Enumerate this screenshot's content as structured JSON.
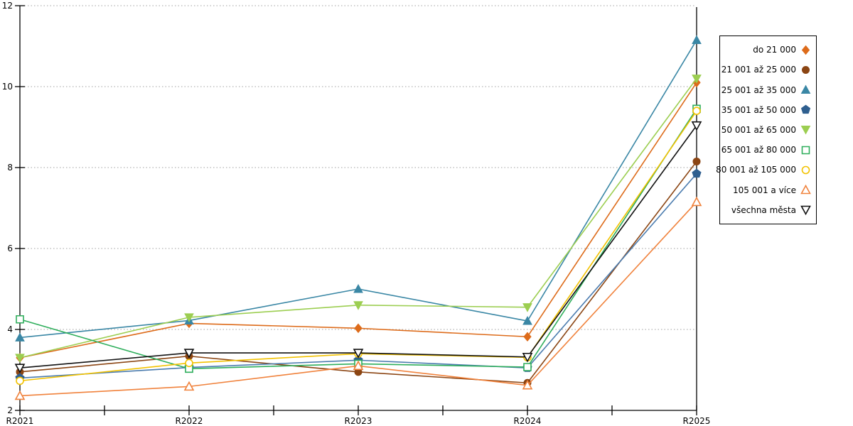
{
  "chart_data": {
    "type": "line",
    "title": "",
    "xlabel": "",
    "ylabel": "",
    "categories": [
      "R2021",
      "R2022",
      "R2023",
      "R2024",
      "R2025"
    ],
    "ylim": [
      2,
      12
    ],
    "yticks": [
      2,
      4,
      6,
      8,
      10,
      12
    ],
    "grid": "horizontal-dotted",
    "grid_color": "#a0a0a0",
    "axis_color": "#000000",
    "background": "#ffffff",
    "legend_position": "outside-right",
    "series": [
      {
        "name": "do 21 000",
        "color": "#dd6b1a",
        "marker": "diamond",
        "fill": "solid",
        "values": [
          3.3,
          4.15,
          4.03,
          3.82,
          10.1
        ]
      },
      {
        "name": "21 001 až 25 000",
        "color": "#8b4513",
        "marker": "circle",
        "fill": "solid",
        "values": [
          2.95,
          3.34,
          2.95,
          2.68,
          8.15
        ]
      },
      {
        "name": "25 001 až 35 000",
        "color": "#3a87a5",
        "marker": "triangle-up",
        "fill": "solid",
        "values": [
          3.8,
          4.22,
          5.0,
          4.21,
          11.15
        ]
      },
      {
        "name": "35 001 až 50 000",
        "color": "#2f5f8f",
        "line_color": "#4a7bae",
        "marker": "pentagon",
        "fill": "solid",
        "values": [
          2.8,
          3.06,
          3.24,
          3.05,
          7.85
        ]
      },
      {
        "name": "50 001 až 65 000",
        "color": "#9cce51",
        "marker": "triangle-down",
        "fill": "solid",
        "values": [
          3.3,
          4.3,
          4.6,
          4.55,
          10.2
        ]
      },
      {
        "name": "65 001 až 80 000",
        "color": "#2eae5b",
        "marker": "square",
        "fill": "open",
        "values": [
          4.25,
          3.03,
          3.15,
          3.07,
          9.45
        ]
      },
      {
        "name": "80 001 až 105 000",
        "color": "#f2c200",
        "marker": "circle",
        "fill": "open",
        "values": [
          2.73,
          3.17,
          3.4,
          3.31,
          9.4
        ]
      },
      {
        "name": "105 001 a více",
        "color": "#f0823c",
        "marker": "triangle-up",
        "fill": "open",
        "values": [
          2.36,
          2.59,
          3.1,
          2.62,
          7.15
        ]
      },
      {
        "name": "všechna města",
        "color": "#111111",
        "marker": "triangle-down",
        "fill": "open",
        "values": [
          3.05,
          3.42,
          3.42,
          3.32,
          9.04
        ]
      }
    ]
  }
}
